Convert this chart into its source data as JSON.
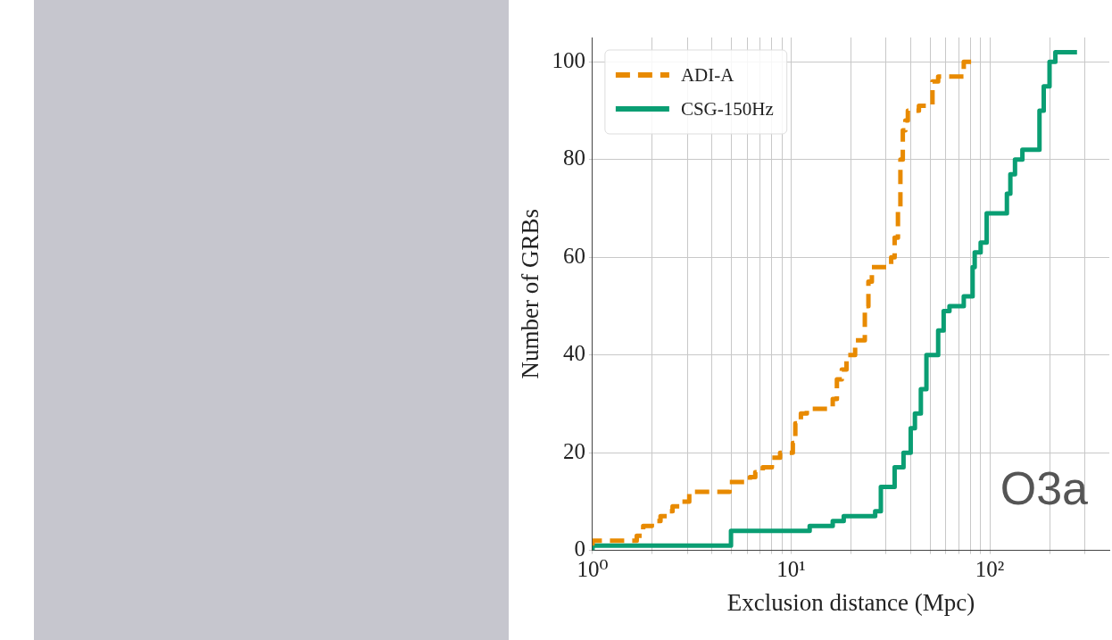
{
  "chart_data": {
    "type": "step",
    "xlabel": "Exclusion distance (Mpc)",
    "ylabel": "Number of GRBs",
    "annotations": [
      "O3a"
    ],
    "log": "x",
    "grid": true,
    "legend": "top left",
    "xlim": [
      1,
      400
    ],
    "xticks": [
      {
        "value": 1,
        "label": "10⁰"
      },
      {
        "value": 2,
        "label": null
      },
      {
        "value": 3,
        "label": null
      },
      {
        "value": 4,
        "label": null
      },
      {
        "value": 5,
        "label": null
      },
      {
        "value": 6,
        "label": null
      },
      {
        "value": 7,
        "label": null
      },
      {
        "value": 8,
        "label": null
      },
      {
        "value": 9,
        "label": null
      },
      {
        "value": 10,
        "label": "10¹"
      },
      {
        "value": 20,
        "label": null
      },
      {
        "value": 30,
        "label": null
      },
      {
        "value": 40,
        "label": null
      },
      {
        "value": 50,
        "label": null
      },
      {
        "value": 60,
        "label": null
      },
      {
        "value": 70,
        "label": null
      },
      {
        "value": 80,
        "label": null
      },
      {
        "value": 90,
        "label": null
      },
      {
        "value": 100,
        "label": "10²"
      },
      {
        "value": 200,
        "label": null
      },
      {
        "value": 300,
        "label": null
      }
    ],
    "ylim": [
      0,
      105
    ],
    "yticks": [
      0,
      20,
      40,
      60,
      80,
      100
    ],
    "series": [
      {
        "name": "ADI-A",
        "color": "#e88a00",
        "line_style": "dashed",
        "x": [
          1,
          1.1,
          1.67,
          1.8,
          1.99,
          2.2,
          2.4,
          2.53,
          2.8,
          3.07,
          3.8,
          4.9,
          5.2,
          6.2,
          6.6,
          7.2,
          8,
          8.8,
          10.2,
          10.5,
          11.2,
          12,
          12.4,
          16.2,
          17,
          18,
          19,
          21,
          23.5,
          24.5,
          25.5,
          26,
          31.9,
          33.2,
          34.5,
          35.5,
          36.5,
          37.6,
          38.7,
          44,
          51.5,
          55,
          57,
          74,
          78,
          81
        ],
        "values": [
          1,
          2,
          2,
          3,
          5,
          6,
          7,
          8,
          9,
          10,
          12,
          12,
          14,
          14,
          15,
          16,
          17,
          19,
          20,
          22,
          26,
          28,
          29,
          29,
          31,
          35,
          37,
          40,
          43,
          50,
          55,
          58,
          58,
          60,
          64,
          70,
          80,
          86,
          88,
          90,
          91,
          96,
          97,
          97,
          100,
          100
        ]
      },
      {
        "name": "CSG-150Hz",
        "color": "#0a9e73",
        "line_style": "solid",
        "x": [
          1,
          4.98,
          12.4,
          16.2,
          18.4,
          26.5,
          28.3,
          31.9,
          33.2,
          36.8,
          40,
          42,
          44,
          45,
          48,
          55,
          58.6,
          62.7,
          66.8,
          74,
          79,
          82,
          84,
          90,
          96.5,
          105.6,
          122,
          127,
          134,
          146,
          178,
          187,
          200,
          214,
          220,
          270,
          275
        ],
        "values": [
          0,
          1,
          4,
          5,
          6,
          7,
          8,
          13,
          13,
          17,
          20,
          25,
          28,
          28,
          33,
          40,
          45,
          49,
          50,
          50,
          52,
          52,
          58,
          61,
          63,
          69,
          69,
          73,
          77,
          80,
          82,
          90,
          95,
          100,
          102,
          102,
          102
        ]
      }
    ]
  }
}
